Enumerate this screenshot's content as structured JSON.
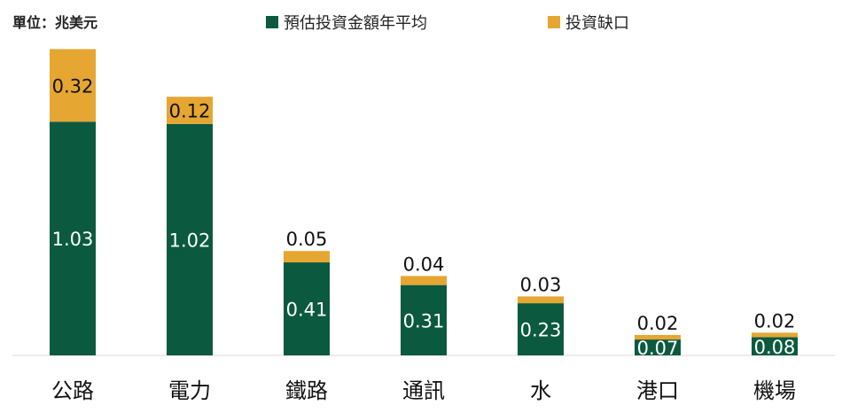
{
  "chart_data": {
    "type": "bar",
    "stacked": true,
    "unit_label": "單位：兆美元",
    "categories": [
      "公路",
      "電力",
      "鐵路",
      "通訊",
      "水",
      "港口",
      "機場"
    ],
    "series": [
      {
        "name": "預估投資金額年平均",
        "color": "#0b5a3f",
        "values": [
          1.03,
          1.02,
          0.41,
          0.31,
          0.23,
          0.07,
          0.08
        ],
        "labels": [
          "1.03",
          "1.02",
          "0.41",
          "0.31",
          "0.23",
          "0.07",
          "0.08"
        ]
      },
      {
        "name": "投資缺口",
        "color": "#e5a632",
        "values": [
          0.32,
          0.12,
          0.05,
          0.04,
          0.03,
          0.02,
          0.02
        ],
        "labels": [
          "0.32",
          "0.12",
          "0.05",
          "0.04",
          "0.03",
          "0.02",
          "0.02"
        ]
      }
    ],
    "legend_position": "top",
    "grid": false
  }
}
